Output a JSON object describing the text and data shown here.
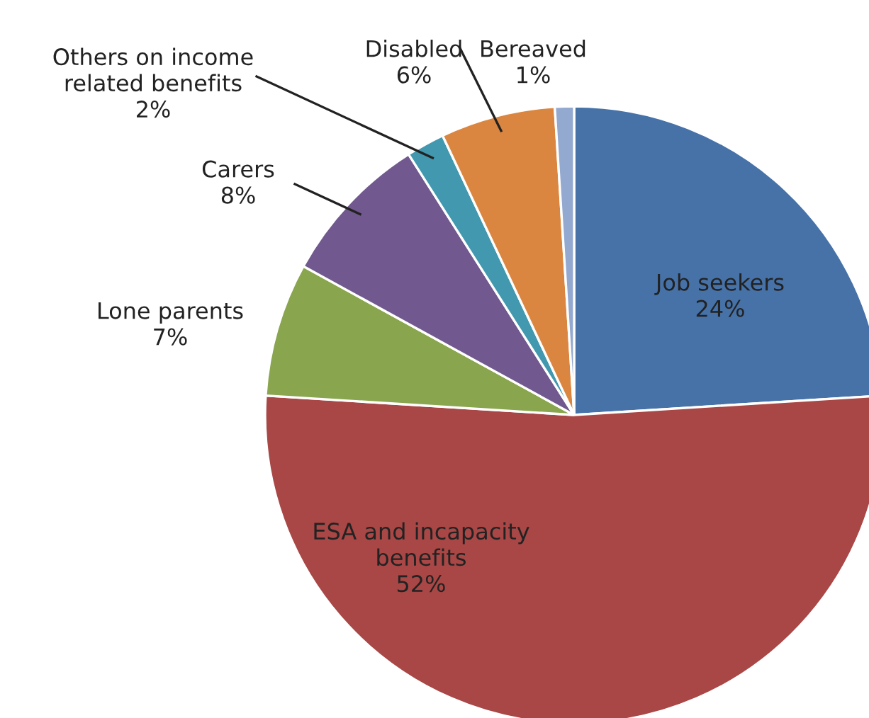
{
  "chart_data": {
    "type": "pie",
    "categories": [
      "Job seekers",
      "ESA and incapacity\nbenefits",
      "Lone parents",
      "Carers",
      "Others on income\nrelated benefits",
      "Disabled",
      "Bereaved"
    ],
    "values": [
      24,
      52,
      7,
      8,
      2,
      6,
      1
    ],
    "colors": [
      "#4672a8",
      "#a84745",
      "#89a54e",
      "#71598f",
      "#4198af",
      "#db8640",
      "#93a9cf"
    ],
    "value_labels": [
      "24%",
      "52%",
      "7%",
      "8%",
      "2%",
      "6%",
      "1%"
    ]
  }
}
